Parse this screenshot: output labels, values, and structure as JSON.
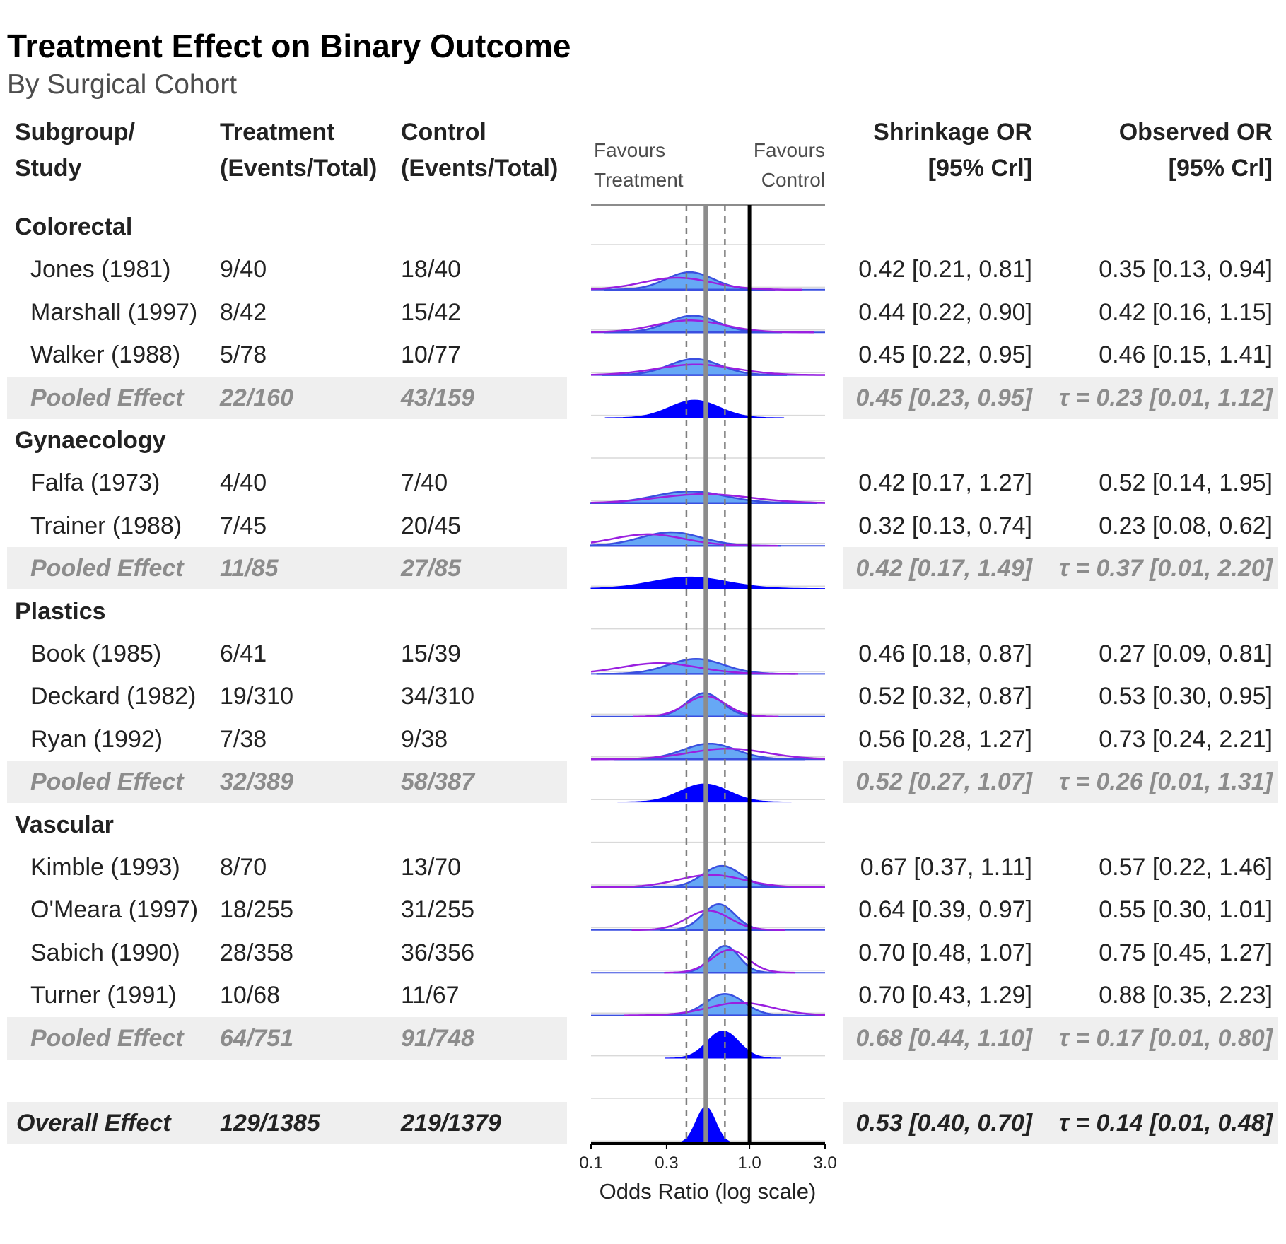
{
  "title": "Treatment Effect on Binary Outcome",
  "subtitle": "By Surgical Cohort",
  "headers": {
    "subgroup": [
      "Subgroup/",
      "Study"
    ],
    "treatment": [
      "Treatment",
      "(Events/Total)"
    ],
    "control": [
      "Control",
      "(Events/Total)"
    ],
    "favours_left": [
      "Favours",
      "Treatment"
    ],
    "favours_right": [
      "Favours",
      "Control"
    ],
    "shrinkage": [
      "Shrinkage OR",
      "[95% Crl]"
    ],
    "observed": [
      "Observed OR",
      "[95% Crl]"
    ]
  },
  "rows": [
    {
      "type": "group",
      "label": "Colorectal"
    },
    {
      "type": "study",
      "label": "Jones (1981)",
      "treatment": "9/40",
      "control": "18/40",
      "shrinkage": "0.42 [0.21, 0.81]",
      "observed": "0.35 [0.13, 0.94]"
    },
    {
      "type": "study",
      "label": "Marshall (1997)",
      "treatment": "8/42",
      "control": "15/42",
      "shrinkage": "0.44 [0.22, 0.90]",
      "observed": "0.42 [0.16, 1.15]"
    },
    {
      "type": "study",
      "label": "Walker (1988)",
      "treatment": "5/78",
      "control": "10/77",
      "shrinkage": "0.45 [0.22, 0.95]",
      "observed": "0.46 [0.15, 1.41]"
    },
    {
      "type": "pooled",
      "label": "Pooled Effect",
      "treatment": "22/160",
      "control": "43/159",
      "shrinkage": "0.45 [0.23, 0.95]",
      "observed": "τ = 0.23 [0.01, 1.12]"
    },
    {
      "type": "group",
      "label": "Gynaecology"
    },
    {
      "type": "study",
      "label": "Falfa (1973)",
      "treatment": "4/40",
      "control": "7/40",
      "shrinkage": "0.42 [0.17, 1.27]",
      "observed": "0.52 [0.14, 1.95]"
    },
    {
      "type": "study",
      "label": "Trainer (1988)",
      "treatment": "7/45",
      "control": "20/45",
      "shrinkage": "0.32 [0.13, 0.74]",
      "observed": "0.23 [0.08, 0.62]"
    },
    {
      "type": "pooled",
      "label": "Pooled Effect",
      "treatment": "11/85",
      "control": "27/85",
      "shrinkage": "0.42 [0.17, 1.49]",
      "observed": "τ = 0.37 [0.01, 2.20]"
    },
    {
      "type": "group",
      "label": "Plastics"
    },
    {
      "type": "study",
      "label": "Book (1985)",
      "treatment": "6/41",
      "control": "15/39",
      "shrinkage": "0.46 [0.18, 0.87]",
      "observed": "0.27 [0.09, 0.81]"
    },
    {
      "type": "study",
      "label": "Deckard (1982)",
      "treatment": "19/310",
      "control": "34/310",
      "shrinkage": "0.52 [0.32, 0.87]",
      "observed": "0.53 [0.30, 0.95]"
    },
    {
      "type": "study",
      "label": "Ryan (1992)",
      "treatment": "7/38",
      "control": "9/38",
      "shrinkage": "0.56 [0.28, 1.27]",
      "observed": "0.73 [0.24, 2.21]"
    },
    {
      "type": "pooled",
      "label": "Pooled Effect",
      "treatment": "32/389",
      "control": "58/387",
      "shrinkage": "0.52 [0.27, 1.07]",
      "observed": "τ = 0.26 [0.01, 1.31]"
    },
    {
      "type": "group",
      "label": "Vascular"
    },
    {
      "type": "study",
      "label": "Kimble (1993)",
      "treatment": "8/70",
      "control": "13/70",
      "shrinkage": "0.67 [0.37, 1.11]",
      "observed": "0.57 [0.22, 1.46]"
    },
    {
      "type": "study",
      "label": "O'Meara (1997)",
      "treatment": "18/255",
      "control": "31/255",
      "shrinkage": "0.64 [0.39, 0.97]",
      "observed": "0.55 [0.30, 1.01]"
    },
    {
      "type": "study",
      "label": "Sabich (1990)",
      "treatment": "28/358",
      "control": "36/356",
      "shrinkage": "0.70 [0.48, 1.07]",
      "observed": "0.75 [0.45, 1.27]"
    },
    {
      "type": "study",
      "label": "Turner (1991)",
      "treatment": "10/68",
      "control": "11/67",
      "shrinkage": "0.70 [0.43, 1.29]",
      "observed": "0.88 [0.35, 2.23]"
    },
    {
      "type": "pooled",
      "label": "Pooled Effect",
      "treatment": "64/751",
      "control": "91/748",
      "shrinkage": "0.68 [0.44, 1.10]",
      "observed": "τ = 0.17 [0.01, 0.80]"
    },
    {
      "type": "blank"
    },
    {
      "type": "overall",
      "label": "Overall Effect",
      "treatment": "129/1385",
      "control": "219/1379",
      "shrinkage": "0.53 [0.40, 0.70]",
      "observed": "τ = 0.14 [0.01, 0.48]"
    }
  ],
  "chart_data": {
    "type": "forest",
    "xlabel": "Odds Ratio (log scale)",
    "x_scale": "log",
    "xlim": [
      0.1,
      3.0
    ],
    "x_ticks": [
      0.1,
      0.3,
      1.0,
      3.0
    ],
    "x_tick_labels": [
      "0.1",
      "0.3",
      "1.0",
      "3.0"
    ],
    "null_line": 1.0,
    "overall_estimate_line": 0.53,
    "overall_interval_lines": [
      0.4,
      0.7
    ],
    "colors": {
      "shrinkage_fill": "#66a8f5",
      "shrinkage_line": "#3a4fe0",
      "observed_line": "#9a1fe0",
      "pooled_fill": "#0000ff",
      "null_line": "#000000",
      "overall_line": "#8c8c8c",
      "shade": "#efefef"
    }
  }
}
